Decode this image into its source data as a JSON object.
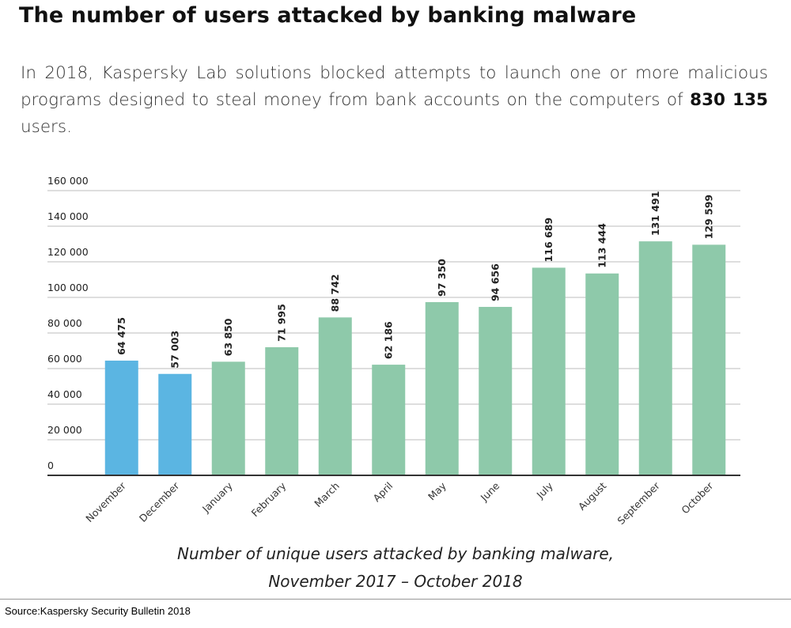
{
  "header": {
    "title": "The number of users attacked by banking malware",
    "intro_text": "In 2018, Kaspersky Lab solutions blocked attempts to launch one or more malicious programs designed to steal money from bank accounts on the computers of",
    "intro_highlight": "830 135",
    "intro_suffix": "users."
  },
  "caption": {
    "line1": "Number of unique users attacked by banking malware,",
    "line2": "November 2017 – October 2018"
  },
  "source": "Source:Kaspersky Security Bulletin 2018",
  "colors": {
    "bar_2017": "#5bb5e2",
    "bar_2018": "#8ec9aa",
    "grid": "#bdbdbd",
    "axis": "#333333"
  },
  "chart_data": {
    "type": "bar",
    "categories": [
      "November",
      "December",
      "January",
      "February",
      "March",
      "April",
      "May",
      "June",
      "July",
      "August",
      "September",
      "October"
    ],
    "values": [
      64475,
      57003,
      63850,
      71995,
      88742,
      62186,
      97350,
      94656,
      116689,
      113444,
      131491,
      129599
    ],
    "value_labels": [
      "64 475",
      "57 003",
      "63 850",
      "71 995",
      "88 742",
      "62 186",
      "97 350",
      "94 656",
      "116 689",
      "113 444",
      "131 491",
      "129 599"
    ],
    "bar_colors": [
      "#5bb5e2",
      "#5bb5e2",
      "#8ec9aa",
      "#8ec9aa",
      "#8ec9aa",
      "#8ec9aa",
      "#8ec9aa",
      "#8ec9aa",
      "#8ec9aa",
      "#8ec9aa",
      "#8ec9aa",
      "#8ec9aa"
    ],
    "yticks": [
      0,
      20000,
      40000,
      60000,
      80000,
      100000,
      120000,
      140000,
      160000
    ],
    "ytick_labels": [
      "0",
      "20 000",
      "40 000",
      "60 000",
      "80 000",
      "100 000",
      "120 000",
      "140 000",
      "160 000"
    ],
    "ylim": [
      0,
      160000
    ],
    "grid": true,
    "title": "",
    "xlabel": "",
    "ylabel": ""
  }
}
